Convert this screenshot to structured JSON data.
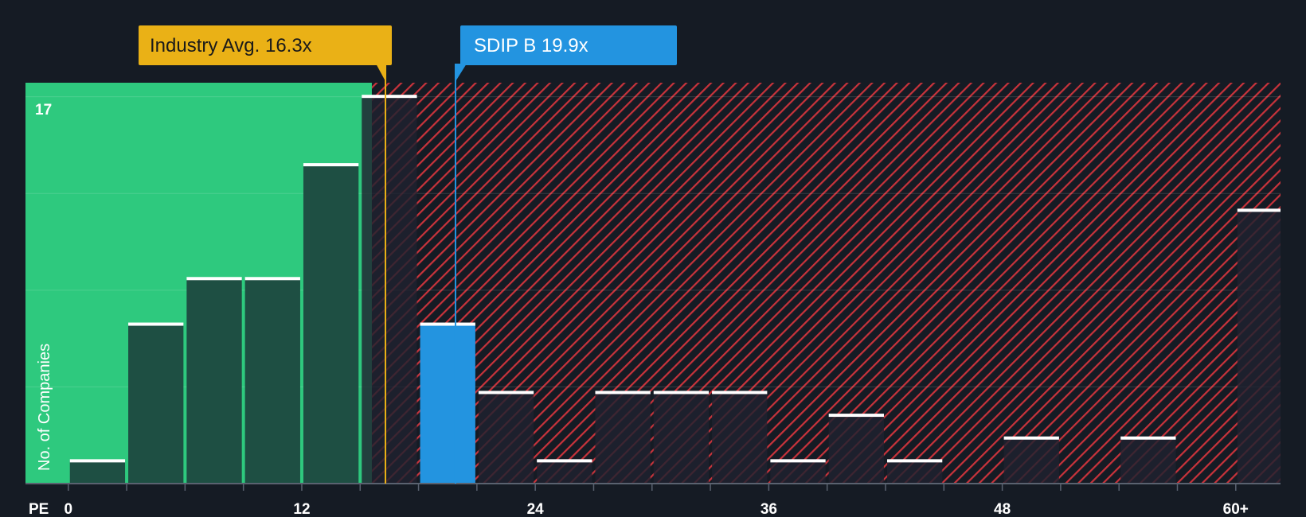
{
  "colors": {
    "background": "#151b24",
    "below_zone": "#2ec97e",
    "bar_dark": "#1e4f43",
    "hatch_line": "#c8333b",
    "highlight_bar": "#2394e0",
    "industry_callout": "#eab116",
    "company_callout": "#2394e0",
    "bar_cap": "#ffffff"
  },
  "chart_data": {
    "type": "bar",
    "title": "",
    "xlabel": "PE",
    "ylabel": "No. of Companies",
    "x_tick_labels": [
      "0",
      "12",
      "24",
      "36",
      "48",
      "60+"
    ],
    "x_tick_values": [
      0,
      12,
      24,
      36,
      48,
      60
    ],
    "x_range": [
      -2.2,
      62.3
    ],
    "bin_width": 3,
    "y_max_label": "17",
    "ylim": [
      0,
      17.6
    ],
    "bins": [
      {
        "start": 0,
        "end": 3,
        "count": 1
      },
      {
        "start": 3,
        "end": 6,
        "count": 7
      },
      {
        "start": 6,
        "end": 9,
        "count": 9
      },
      {
        "start": 9,
        "end": 12,
        "count": 9
      },
      {
        "start": 12,
        "end": 15,
        "count": 14
      },
      {
        "start": 15,
        "end": 18,
        "count": 17
      },
      {
        "start": 18,
        "end": 21,
        "count": 7,
        "highlight": true
      },
      {
        "start": 21,
        "end": 24,
        "count": 4
      },
      {
        "start": 24,
        "end": 27,
        "count": 1
      },
      {
        "start": 27,
        "end": 30,
        "count": 4
      },
      {
        "start": 30,
        "end": 33,
        "count": 4
      },
      {
        "start": 33,
        "end": 36,
        "count": 4
      },
      {
        "start": 36,
        "end": 39,
        "count": 1
      },
      {
        "start": 39,
        "end": 42,
        "count": 3
      },
      {
        "start": 42,
        "end": 45,
        "count": 1
      },
      {
        "start": 45,
        "end": 48,
        "count": 0
      },
      {
        "start": 48,
        "end": 51,
        "count": 2
      },
      {
        "start": 51,
        "end": 54,
        "count": 0
      },
      {
        "start": 54,
        "end": 57,
        "count": 2
      },
      {
        "start": 57,
        "end": 60,
        "count": 0
      },
      {
        "start": 60,
        "end": 63,
        "count": 12
      }
    ],
    "industry_avg": {
      "label": "Industry Avg. 16.3x",
      "value": 16.3
    },
    "company": {
      "label": "SDIP B 19.9x",
      "value": 19.9
    },
    "below_zone_end": 15.6,
    "legend": "none"
  }
}
